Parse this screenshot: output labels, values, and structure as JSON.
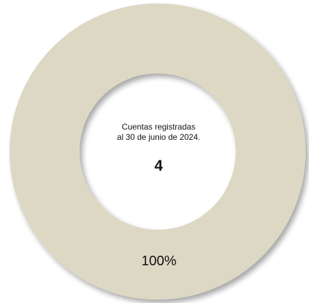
{
  "chart_data": {
    "type": "pie",
    "variant": "donut",
    "categories": [
      "Cuentas registradas"
    ],
    "values": [
      100
    ],
    "slice_labels": [
      "100%"
    ],
    "center_text": [
      "Cuentas registradas",
      "al 30 de junio de 2024."
    ],
    "center_value": "4",
    "colors": {
      "slice": "#ddd8c4",
      "hole": "#ffffff",
      "shadow": "#b9b4a3",
      "text": "#111111"
    }
  }
}
